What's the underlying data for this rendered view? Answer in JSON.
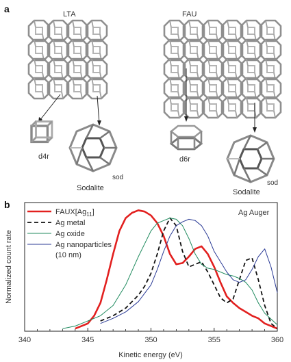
{
  "panel_a": {
    "label": "a",
    "lta": {
      "title": "LTA",
      "cage1_label": "d4r",
      "cage2_sub": "sod",
      "cage2_name": "Sodalite"
    },
    "fau": {
      "title": "FAU",
      "cage1_label": "d6r",
      "cage2_sub": "sod",
      "cage2_name": "Sodalite"
    }
  },
  "panel_b": {
    "label": "b",
    "inset_title": "Ag Auger",
    "legend": {
      "faux": "FAUX[Ag",
      "faux_sub": "11",
      "faux_end": "]",
      "metal": "Ag metal",
      "oxide": "Ag oxide",
      "nano1": "Ag nanoparticles",
      "nano2": "(10 nm)"
    },
    "colors": {
      "faux": "#e2201f",
      "metal": "#111111",
      "oxide": "#1f8a5e",
      "nano": "#2b3b96"
    }
  },
  "chart_data": {
    "type": "line",
    "xlabel": "Kinetic energy (eV)",
    "ylabel": "Normalized count rate",
    "xlim": [
      340,
      360
    ],
    "ylim": [
      0,
      1
    ],
    "xticks": [
      340,
      345,
      350,
      355,
      360
    ],
    "yticks_labeled": false,
    "series": [
      {
        "name": "FAUX[Ag11]",
        "style": "solid-thick",
        "x": [
          344,
          345,
          345.5,
          346,
          346.5,
          347,
          347.5,
          348,
          348.5,
          349,
          349.5,
          350,
          350.5,
          351,
          351.5,
          352,
          352.5,
          353,
          353.5,
          354,
          354.5,
          355,
          355.5,
          356,
          356.5,
          357,
          357.5,
          358,
          358.5,
          359,
          360
        ],
        "y": [
          0.02,
          0.06,
          0.12,
          0.22,
          0.4,
          0.6,
          0.78,
          0.88,
          0.92,
          0.94,
          0.93,
          0.9,
          0.84,
          0.74,
          0.6,
          0.52,
          0.53,
          0.58,
          0.64,
          0.66,
          0.6,
          0.5,
          0.38,
          0.27,
          0.22,
          0.18,
          0.15,
          0.12,
          0.1,
          0.06,
          0.02
        ]
      },
      {
        "name": "Ag metal",
        "style": "dashed",
        "x": [
          346,
          347,
          348,
          349,
          349.5,
          350,
          350.5,
          351,
          351.5,
          352,
          352.5,
          353,
          353.5,
          354,
          354.5,
          355,
          355.5,
          356,
          356.5,
          357,
          357.5,
          358,
          358.5,
          359,
          359.5,
          360
        ],
        "y": [
          0.08,
          0.12,
          0.18,
          0.28,
          0.35,
          0.45,
          0.6,
          0.78,
          0.88,
          0.82,
          0.62,
          0.5,
          0.52,
          0.54,
          0.46,
          0.36,
          0.26,
          0.22,
          0.25,
          0.4,
          0.55,
          0.57,
          0.4,
          0.2,
          0.06,
          0.02
        ]
      },
      {
        "name": "Ag oxide",
        "style": "thin",
        "x": [
          343,
          344,
          345,
          346,
          347,
          348,
          349,
          349.5,
          350,
          350.5,
          351,
          351.5,
          352,
          352.5,
          353,
          353.5,
          354,
          354.5,
          355,
          355.5,
          356,
          356.5,
          357,
          357.5,
          358,
          358.5,
          359,
          360
        ],
        "y": [
          0.02,
          0.04,
          0.08,
          0.12,
          0.2,
          0.36,
          0.58,
          0.68,
          0.78,
          0.84,
          0.86,
          0.88,
          0.87,
          0.82,
          0.72,
          0.6,
          0.52,
          0.49,
          0.48,
          0.46,
          0.44,
          0.43,
          0.41,
          0.38,
          0.32,
          0.22,
          0.14,
          0.05
        ]
      },
      {
        "name": "Ag nanoparticles (10 nm)",
        "style": "thin",
        "x": [
          346,
          347,
          348,
          349,
          350,
          350.5,
          351,
          351.5,
          352,
          352.5,
          353,
          353.5,
          354,
          354.5,
          355,
          355.5,
          356,
          356.5,
          357,
          357.5,
          358,
          358.5,
          359,
          359.5,
          360
        ],
        "y": [
          0.06,
          0.1,
          0.15,
          0.23,
          0.36,
          0.48,
          0.62,
          0.74,
          0.82,
          0.85,
          0.87,
          0.86,
          0.82,
          0.74,
          0.62,
          0.54,
          0.46,
          0.4,
          0.38,
          0.4,
          0.48,
          0.58,
          0.64,
          0.5,
          0.3
        ]
      }
    ]
  }
}
